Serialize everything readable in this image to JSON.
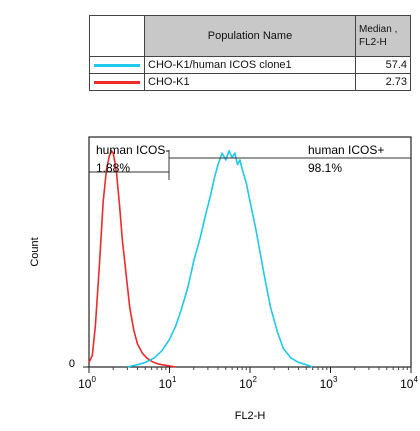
{
  "legend": {
    "header_name": "Population Name",
    "header_median_line1": "Median ,",
    "header_median_line2": "FL2-H",
    "rows": [
      {
        "name": "CHO-K1/human ICOS  clone1",
        "median": "57.4",
        "color": "#1ec8ee"
      },
      {
        "name": "CHO-K1",
        "median": "2.73",
        "color": "#ee2a2a"
      }
    ]
  },
  "gates": [
    {
      "label": "human ICOS-",
      "percent": "1.88%"
    },
    {
      "label": "human ICOS+",
      "percent": "98.1%"
    }
  ],
  "chart_data": {
    "type": "line",
    "xlabel": "FL2-H",
    "ylabel": "Count",
    "xscale": "log",
    "xlim": [
      1,
      10000
    ],
    "ylim": [
      0,
      100
    ],
    "y_tick_labels": [
      "0"
    ],
    "x_tick_labels": [
      {
        "base": "10",
        "exp": "0"
      },
      {
        "base": "10",
        "exp": "1"
      },
      {
        "base": "10",
        "exp": "2"
      },
      {
        "base": "10",
        "exp": "3"
      },
      {
        "base": "10",
        "exp": "4"
      }
    ],
    "series": [
      {
        "name": "CHO-K1",
        "color": "#ee2a2a",
        "x": [
          1,
          1.1,
          1.2,
          1.35,
          1.5,
          1.65,
          1.8,
          1.9,
          2.0,
          2.1,
          2.2,
          2.4,
          2.6,
          2.9,
          3.2,
          3.6,
          4.0,
          4.6,
          5.2,
          6.0,
          7.0,
          8.0,
          10,
          12
        ],
        "y": [
          2,
          5,
          18,
          45,
          72,
          86,
          92,
          94,
          93,
          89,
          84,
          70,
          55,
          40,
          26,
          16,
          10,
          6,
          4,
          2.5,
          1.5,
          1,
          0.5,
          0
        ]
      },
      {
        "name": "CHO-K1/human ICOS  clone1",
        "color": "#1ec8ee",
        "x": [
          3,
          4,
          5,
          6.5,
          8,
          10,
          12,
          14,
          17,
          20,
          24,
          28,
          32,
          36,
          40,
          45,
          50,
          55,
          60,
          65,
          70,
          75,
          80,
          90,
          100,
          115,
          130,
          150,
          180,
          220,
          260,
          320,
          400,
          500,
          600
        ],
        "y": [
          0,
          1,
          2,
          4,
          7,
          12,
          18,
          25,
          35,
          46,
          56,
          66,
          74,
          82,
          88,
          93,
          90,
          94,
          91,
          93,
          88,
          90,
          86,
          80,
          72,
          62,
          52,
          40,
          26,
          15,
          8,
          4,
          2,
          1,
          0
        ]
      }
    ]
  }
}
